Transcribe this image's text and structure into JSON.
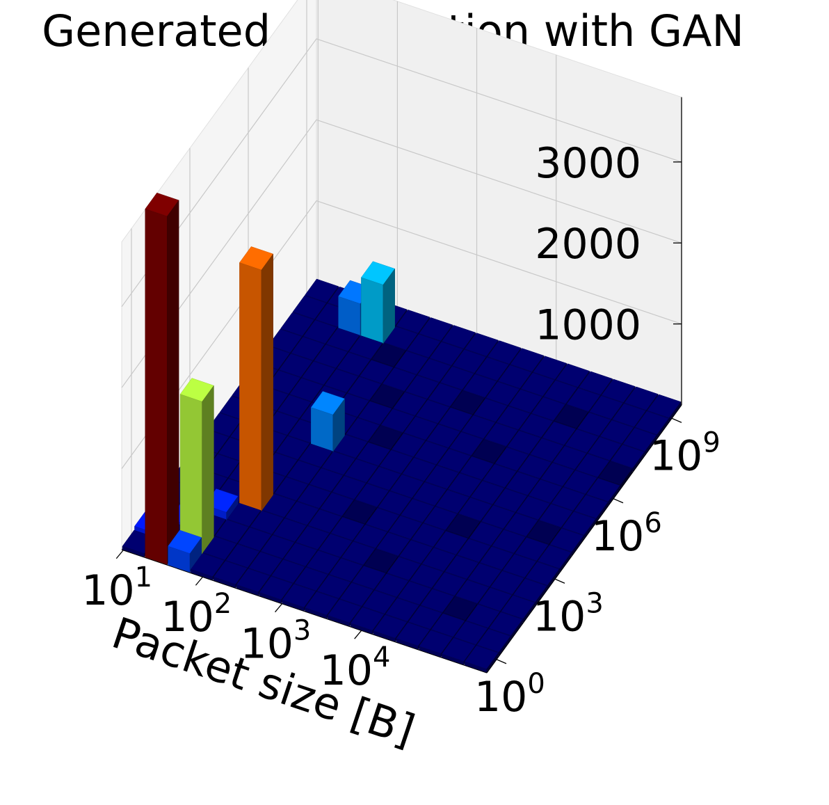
{
  "chart_data": {
    "type": "bar3d",
    "title": "Generated distribution with GAN",
    "xlabel": "Packet size [B]",
    "ylabel": "",
    "zlabel": "",
    "x_scale": "log",
    "y_scale": "log",
    "x_ticks": [
      {
        "base": "10",
        "exp": "1"
      },
      {
        "base": "10",
        "exp": "2"
      },
      {
        "base": "10",
        "exp": "3"
      },
      {
        "base": "10",
        "exp": "4"
      }
    ],
    "y_ticks": [
      {
        "base": "10",
        "exp": "0"
      },
      {
        "base": "10",
        "exp": "3"
      },
      {
        "base": "10",
        "exp": "6"
      },
      {
        "base": "10",
        "exp": "9"
      }
    ],
    "z_ticks": [
      "1000",
      "2000",
      "3000"
    ],
    "zlim": [
      0,
      3500
    ],
    "grid": true,
    "colormap": "jet",
    "bins": 16,
    "bars": [
      {
        "xbin": 1,
        "ybin": 0,
        "value": 4300
      },
      {
        "xbin": 2,
        "ybin": 1,
        "value": 1900
      },
      {
        "xbin": 2,
        "ybin": 0,
        "value": 230
      },
      {
        "xbin": 3,
        "ybin": 4,
        "value": 3000
      },
      {
        "xbin": 0,
        "ybin": 1,
        "value": 80
      },
      {
        "xbin": 4,
        "ybin": 8,
        "value": 480
      },
      {
        "xbin": 3,
        "ybin": 14,
        "value": 750
      },
      {
        "xbin": 2,
        "ybin": 14,
        "value": 420
      },
      {
        "xbin": 2,
        "ybin": 3,
        "value": 120
      },
      {
        "xbin": 1,
        "ybin": 2,
        "value": 60
      }
    ],
    "small_bars": [
      {
        "xbin": 6,
        "ybin": 9,
        "value": 6
      },
      {
        "xbin": 9,
        "ybin": 3,
        "value": 5
      },
      {
        "xbin": 11,
        "ybin": 6,
        "value": 6
      },
      {
        "xbin": 5,
        "ybin": 11,
        "value": 5
      },
      {
        "xbin": 8,
        "ybin": 12,
        "value": 6
      },
      {
        "xbin": 13,
        "ybin": 2,
        "value": 5
      },
      {
        "xbin": 10,
        "ybin": 10,
        "value": 6
      },
      {
        "xbin": 12,
        "ybin": 13,
        "value": 5
      },
      {
        "xbin": 7,
        "ybin": 5,
        "value": 6
      },
      {
        "xbin": 14,
        "ybin": 7,
        "value": 5
      },
      {
        "xbin": 4,
        "ybin": 13,
        "value": 6
      },
      {
        "xbin": 15,
        "ybin": 11,
        "value": 5
      }
    ]
  }
}
